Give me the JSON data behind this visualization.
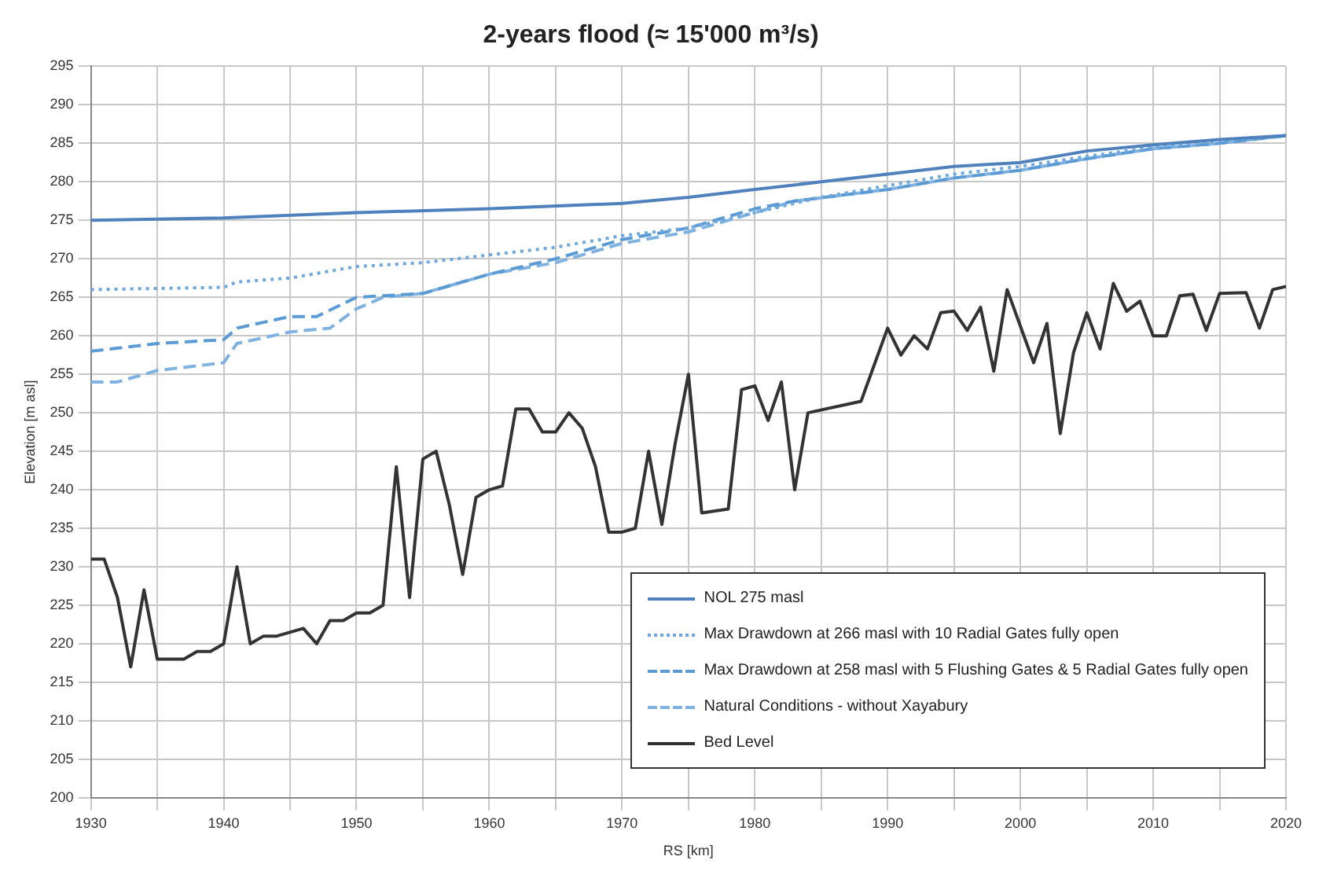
{
  "chart_data": {
    "type": "line",
    "title": "2-years flood (≈ 15'000 m³/s)",
    "xlabel": "RS [km]",
    "ylabel": "Elevation [m asl]",
    "xlim": [
      1930,
      2020
    ],
    "xticks": [
      1930,
      {
        "value": 1935,
        "label": null
      },
      1940,
      {
        "value": 1945,
        "label": null
      },
      1950,
      {
        "value": 1955,
        "label": null
      },
      1960,
      {
        "value": 1965,
        "label": null
      },
      1970,
      {
        "value": 1975,
        "label": null
      },
      1980,
      {
        "value": 1985,
        "label": null
      },
      1990,
      {
        "value": 1995,
        "label": null
      },
      2000,
      {
        "value": 2005,
        "label": null
      },
      2010,
      {
        "value": 2015,
        "label": null
      },
      2020
    ],
    "ylim": [
      200,
      295
    ],
    "yticks": [
      200,
      205,
      210,
      215,
      220,
      225,
      230,
      235,
      240,
      245,
      250,
      255,
      260,
      265,
      270,
      275,
      280,
      285,
      290,
      295
    ],
    "grid": true,
    "legend": "bottom right",
    "marker": "none",
    "series": [
      {
        "name": "NOL 275 masl",
        "color": "#4f81bd",
        "line_style": "solid",
        "x": [
          1930,
          1940,
          1950,
          1960,
          1970,
          1975,
          1980,
          1985,
          1990,
          1995,
          2000,
          2005,
          2010,
          2015,
          2020
        ],
        "values": [
          275,
          275.3,
          276,
          276.5,
          277.2,
          278,
          279,
          280,
          281,
          282,
          282.5,
          284,
          284.8,
          285.5,
          286
        ]
      },
      {
        "name": "Max Drawdown at 266 masl with 10 Radial Gates fully open",
        "color": "#6fa8dc",
        "line_style": "dotted",
        "x": [
          1930,
          1940,
          1941,
          1945,
          1950,
          1955,
          1960,
          1965,
          1970,
          1975,
          1980,
          1985,
          1990,
          1995,
          2000,
          2005,
          2010,
          2015,
          2020
        ],
        "values": [
          266,
          266.3,
          267,
          267.5,
          269,
          269.5,
          270.5,
          271.5,
          273,
          274,
          276,
          278,
          279.5,
          281,
          282,
          283.3,
          284.5,
          285.3,
          286
        ]
      },
      {
        "name": "Max Drawdown at 258 masl with 5 Flushing Gates & 5 Radial Gates fully open",
        "color": "#5b9bd5",
        "line_style": "dashed",
        "x": [
          1930,
          1935,
          1940,
          1941,
          1945,
          1947,
          1950,
          1955,
          1960,
          1965,
          1970,
          1975,
          1980,
          1983,
          1990,
          1995,
          2000,
          2005,
          2010,
          2015,
          2020
        ],
        "values": [
          258,
          259,
          259.5,
          261,
          262.5,
          262.5,
          265,
          265.5,
          268,
          270,
          272.5,
          274,
          276.5,
          277.5,
          279,
          280.5,
          281.5,
          283,
          284.3,
          285,
          286
        ]
      },
      {
        "name": "Natural Conditions - without Xayabury",
        "color": "#7fb2e0",
        "line_style": "dashed",
        "x": [
          1930,
          1932,
          1935,
          1940,
          1941,
          1945,
          1948,
          1950,
          1952,
          1955,
          1960,
          1965,
          1970,
          1975,
          1980,
          1983,
          1990,
          1995,
          2000,
          2005,
          2010,
          2015,
          2020
        ],
        "values": [
          254,
          254,
          255.5,
          256.5,
          259,
          260.5,
          261,
          263.5,
          265,
          265.5,
          268,
          269.5,
          272,
          273.5,
          276,
          277.5,
          279,
          280.5,
          281.5,
          283,
          284.3,
          285,
          286
        ]
      },
      {
        "name": "Bed Level",
        "color": "#333333",
        "line_style": "solid",
        "x": [
          1930,
          1931,
          1932,
          1933,
          1934,
          1935,
          1937,
          1938,
          1939,
          1940,
          1941,
          1942,
          1943,
          1944,
          1946,
          1947,
          1948,
          1949,
          1950,
          1951,
          1952,
          1953,
          1954,
          1955,
          1956,
          1957,
          1958,
          1959,
          1960,
          1961,
          1962,
          1963,
          1964,
          1965,
          1966,
          1967,
          1968,
          1969,
          1970,
          1971,
          1972,
          1973,
          1974,
          1975,
          1976,
          1978,
          1979,
          1980,
          1981,
          1982,
          1983,
          1984,
          1988,
          1990,
          1991,
          1992,
          1993,
          1994,
          1995,
          1996,
          1997,
          1998,
          1999,
          2001,
          2002,
          2003,
          2004,
          2005,
          2006,
          2007,
          2008,
          2009,
          2010,
          2011,
          2012,
          2013,
          2014,
          2015,
          2017,
          2018,
          2019,
          2020
        ],
        "values": [
          231,
          231,
          226,
          217,
          227,
          218,
          218,
          219,
          219,
          220,
          230,
          220,
          221,
          221,
          222,
          220,
          223,
          223,
          224,
          224,
          225,
          243,
          226,
          244,
          245,
          238,
          229,
          239,
          240,
          240.5,
          250.5,
          250.5,
          247.5,
          247.5,
          250,
          248,
          243,
          234.5,
          234.5,
          235,
          245,
          235.5,
          246,
          255,
          237,
          237.5,
          253,
          253.5,
          249,
          254,
          240,
          250,
          251.5,
          261,
          257.5,
          260,
          258.3,
          263,
          263.2,
          260.7,
          263.7,
          255.4,
          266,
          256.5,
          261.6,
          247.3,
          257.8,
          263,
          258.3,
          266.8,
          263.2,
          264.5,
          260,
          260,
          265.2,
          265.4,
          260.7,
          265.5,
          265.6,
          261,
          266,
          266.4
        ]
      }
    ]
  }
}
